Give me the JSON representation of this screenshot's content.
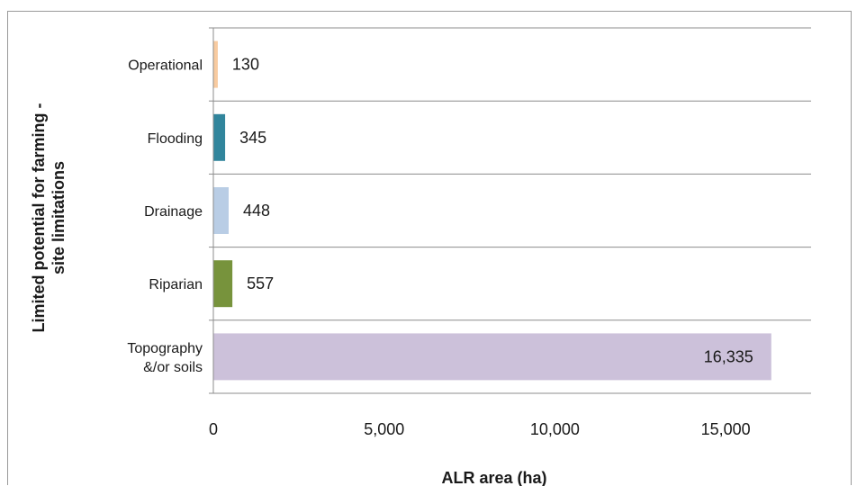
{
  "chart_data": {
    "type": "bar",
    "orientation": "horizontal",
    "categories": [
      "Operational",
      "Flooding",
      "Drainage",
      "Riparian",
      "Topography &/or soils"
    ],
    "category_lines": [
      [
        "Operational"
      ],
      [
        "Flooding"
      ],
      [
        "Drainage"
      ],
      [
        "Riparian"
      ],
      [
        "Topography",
        "&/or soils"
      ]
    ],
    "values": [
      130,
      345,
      448,
      557,
      16335
    ],
    "value_labels": [
      "130",
      "345",
      "448",
      "557",
      "16,335"
    ],
    "colors": [
      "#f8cba0",
      "#31859c",
      "#b9cde5",
      "#77933c",
      "#ccc1da"
    ],
    "xlim": [
      0,
      17500
    ],
    "xticks": [
      0,
      5000,
      10000,
      15000
    ],
    "xtick_labels": [
      "0",
      "5,000",
      "10,000",
      "15,000"
    ],
    "xlabel": "ALR area (ha)",
    "ylabel_lines": [
      "Limited potential for farming -",
      "site limitations"
    ],
    "grid": true,
    "legend": "none"
  }
}
